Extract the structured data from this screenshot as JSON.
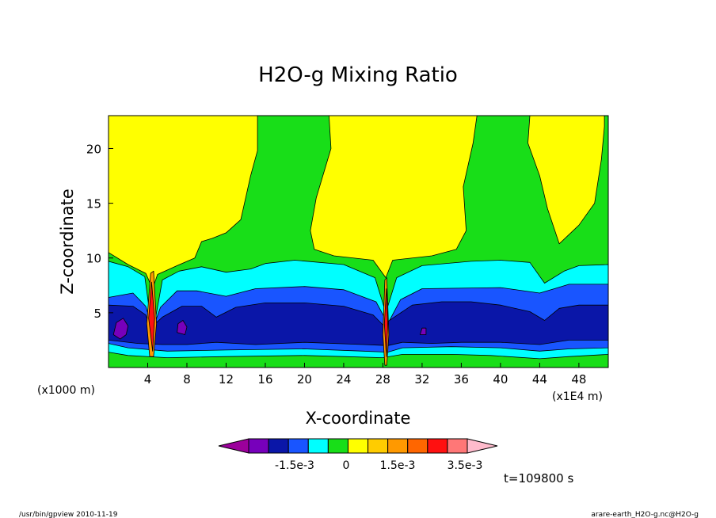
{
  "chart_data": {
    "type": "heatmap",
    "title": "H2O-g Mixing Ratio",
    "xlabel": "X-coordinate",
    "ylabel": "Z-coordinate",
    "x_unit": "(x1E4 m)",
    "y_unit": "(x1000 m)",
    "xlim": [
      0,
      51
    ],
    "ylim": [
      0,
      23
    ],
    "x_ticks": [
      4,
      8,
      12,
      16,
      20,
      24,
      28,
      32,
      36,
      40,
      44,
      48
    ],
    "y_ticks": [
      5,
      10,
      15,
      20
    ],
    "colorbar": {
      "colors": [
        "#9b009b",
        "#7700bb",
        "#0a16a8",
        "#1955ff",
        "#00ffff",
        "#18de18",
        "#ffff00",
        "#ffcc00",
        "#ff9900",
        "#ff6600",
        "#ff1010",
        "#ff7777",
        "#ffbbcc"
      ],
      "labels": [
        "-1.5e-3",
        "0",
        "1.5e-3",
        "3.5e-3"
      ]
    },
    "time_label": "t=109800 s",
    "footer_left": "/usr/bin/gpview   2010-11-19",
    "footer_right": "arare-earth_H2O-g.nc@H2O-g",
    "levels": [
      {
        "name": "green",
        "color": "#18de18",
        "polygons": [
          [
            [
              0,
              0
            ],
            [
              51,
              0
            ],
            [
              51,
              23
            ],
            [
              0,
              23
            ]
          ]
        ]
      },
      {
        "name": "yellow",
        "color": "#ffff00",
        "polygons": [
          [
            [
              0,
              23
            ],
            [
              0,
              10.5
            ],
            [
              2,
              9.4
            ],
            [
              3.8,
              8.6
            ],
            [
              4.5,
              7.2
            ],
            [
              5,
              8.5
            ],
            [
              7,
              9.3
            ],
            [
              8.8,
              10.0
            ],
            [
              9.5,
              11.5
            ],
            [
              10.6,
              11.8
            ],
            [
              12,
              12.3
            ],
            [
              13.5,
              13.5
            ],
            [
              14,
              15.5
            ],
            [
              14.5,
              17.5
            ],
            [
              15.2,
              19.8
            ],
            [
              15.2,
              23
            ]
          ],
          [
            [
              22.5,
              23
            ],
            [
              22.7,
              20
            ],
            [
              21.2,
              15.5
            ],
            [
              20.6,
              12.5
            ],
            [
              21,
              10.8
            ],
            [
              23,
              10.2
            ],
            [
              27,
              9.8
            ],
            [
              28.3,
              8.2
            ],
            [
              29,
              9.8
            ],
            [
              33,
              10.2
            ],
            [
              35.5,
              10.8
            ],
            [
              36.5,
              12.5
            ],
            [
              36.2,
              16.5
            ],
            [
              37.2,
              20.5
            ],
            [
              37.6,
              23
            ]
          ],
          [
            [
              43,
              23
            ],
            [
              42.8,
              20.5
            ],
            [
              44,
              17.5
            ],
            [
              44.8,
              14.5
            ],
            [
              46,
              11.3
            ],
            [
              48,
              13
            ],
            [
              49.6,
              15
            ],
            [
              50.3,
              19
            ],
            [
              50.6,
              22
            ],
            [
              50.6,
              23
            ]
          ]
        ]
      },
      {
        "name": "cyan",
        "color": "#00ffff",
        "polygons": [
          [
            [
              0,
              1.4
            ],
            [
              0,
              9.7
            ],
            [
              2,
              9.2
            ],
            [
              3.7,
              8.3
            ],
            [
              4.5,
              3.0
            ],
            [
              5.5,
              8.0
            ],
            [
              7.2,
              8.8
            ],
            [
              9.5,
              9.2
            ],
            [
              12,
              8.7
            ],
            [
              14.5,
              9.0
            ],
            [
              16,
              9.5
            ],
            [
              19,
              9.8
            ],
            [
              24,
              9.4
            ],
            [
              27.2,
              8.2
            ],
            [
              28.3,
              5
            ],
            [
              29.4,
              8.2
            ],
            [
              32,
              9.3
            ],
            [
              37,
              9.7
            ],
            [
              40,
              9.8
            ],
            [
              43,
              9.6
            ],
            [
              44.5,
              7.7
            ],
            [
              46.5,
              8.8
            ],
            [
              48,
              9.3
            ],
            [
              51,
              9.4
            ],
            [
              51,
              1.2
            ],
            [
              47,
              1.0
            ],
            [
              44,
              0.8
            ],
            [
              39,
              1.1
            ],
            [
              35,
              1.2
            ],
            [
              30,
              1.2
            ],
            [
              28,
              0.9
            ],
            [
              24,
              1.0
            ],
            [
              20,
              1.1
            ],
            [
              12,
              1.0
            ],
            [
              6,
              0.9
            ],
            [
              2,
              1.1
            ]
          ]
        ]
      },
      {
        "name": "blue",
        "color": "#1955ff",
        "polygons": [
          [
            [
              0,
              2.2
            ],
            [
              0,
              6.4
            ],
            [
              2.5,
              6.8
            ],
            [
              3.8,
              5.6
            ],
            [
              4.5,
              3.5
            ],
            [
              5.3,
              5.5
            ],
            [
              7,
              7.0
            ],
            [
              9,
              7.0
            ],
            [
              12,
              6.5
            ],
            [
              15,
              7.2
            ],
            [
              20,
              7.4
            ],
            [
              24,
              7.1
            ],
            [
              27.3,
              6.0
            ],
            [
              28.5,
              4.0
            ],
            [
              29.8,
              6.2
            ],
            [
              32,
              7.2
            ],
            [
              40,
              7.3
            ],
            [
              44,
              6.8
            ],
            [
              45.5,
              7.2
            ],
            [
              47,
              7.6
            ],
            [
              51,
              7.6
            ],
            [
              51,
              1.8
            ],
            [
              47,
              1.7
            ],
            [
              44,
              1.5
            ],
            [
              40,
              1.8
            ],
            [
              35,
              1.9
            ],
            [
              30,
              1.8
            ],
            [
              28.5,
              1.4
            ],
            [
              26,
              1.5
            ],
            [
              20,
              1.7
            ],
            [
              12,
              1.6
            ],
            [
              6,
              1.5
            ],
            [
              2,
              1.8
            ]
          ]
        ]
      },
      {
        "name": "darkblue",
        "color": "#0a16a8",
        "polygons": [
          [
            [
              0,
              2.5
            ],
            [
              0,
              5.7
            ],
            [
              2.5,
              5.6
            ],
            [
              3.8,
              4.8
            ],
            [
              4.3,
              3.6
            ],
            [
              5.5,
              4.6
            ],
            [
              7.5,
              5.6
            ],
            [
              9.5,
              5.6
            ],
            [
              11,
              4.6
            ],
            [
              13,
              5.5
            ],
            [
              16,
              5.9
            ],
            [
              20,
              5.9
            ],
            [
              24,
              5.6
            ],
            [
              27,
              4.8
            ],
            [
              28,
              3.9
            ],
            [
              29.5,
              4.8
            ],
            [
              31,
              5.7
            ],
            [
              34,
              6.0
            ],
            [
              37,
              6.0
            ],
            [
              40,
              5.7
            ],
            [
              43,
              5.1
            ],
            [
              44.5,
              4.3
            ],
            [
              46,
              5.4
            ],
            [
              48,
              5.7
            ],
            [
              51,
              5.7
            ],
            [
              51,
              2.5
            ],
            [
              47,
              2.5
            ],
            [
              44,
              2.1
            ],
            [
              40,
              2.3
            ],
            [
              36,
              2.3
            ],
            [
              33,
              2.2
            ],
            [
              30,
              2.3
            ],
            [
              28.5,
              2.0
            ],
            [
              26,
              2.1
            ],
            [
              20,
              2.3
            ],
            [
              15,
              2.1
            ],
            [
              11,
              2.3
            ],
            [
              8,
              2.1
            ],
            [
              5.5,
              2.1
            ],
            [
              3,
              2.2
            ]
          ]
        ]
      },
      {
        "name": "purple",
        "color": "#7700bb",
        "polygons": [
          [
            [
              0.5,
              3.0
            ],
            [
              0.8,
              4.1
            ],
            [
              1.5,
              4.5
            ],
            [
              2.0,
              3.8
            ],
            [
              1.8,
              3.0
            ],
            [
              1.2,
              2.6
            ]
          ],
          [
            [
              7.0,
              3.2
            ],
            [
              7.1,
              4.0
            ],
            [
              7.6,
              4.3
            ],
            [
              8.0,
              3.7
            ],
            [
              7.8,
              3.0
            ]
          ],
          [
            [
              31.8,
              3.0
            ],
            [
              32.0,
              3.6
            ],
            [
              32.4,
              3.6
            ],
            [
              32.4,
              3.0
            ]
          ]
        ]
      },
      {
        "name": "orange",
        "color": "#ff9900",
        "polygons": [
          [
            [
              3.9,
              4.0
            ],
            [
              4.3,
              8.6
            ],
            [
              4.6,
              8.8
            ],
            [
              4.9,
              4.0
            ],
            [
              4.6,
              1.0
            ],
            [
              4.2,
              1.0
            ]
          ],
          [
            [
              28.0,
              3.0
            ],
            [
              28.2,
              8.0
            ],
            [
              28.4,
              8.2
            ],
            [
              28.6,
              3.0
            ],
            [
              28.4,
              0.2
            ],
            [
              28.2,
              0.2
            ]
          ]
        ]
      },
      {
        "name": "red",
        "color": "#ff1010",
        "polygons": [
          [
            [
              4.1,
              4.5
            ],
            [
              4.4,
              7.8
            ],
            [
              4.7,
              4.5
            ],
            [
              4.5,
              1.5
            ]
          ],
          [
            [
              28.15,
              4.0
            ],
            [
              28.35,
              7.2
            ],
            [
              28.5,
              4.0
            ],
            [
              28.35,
              1.0
            ]
          ]
        ]
      }
    ]
  }
}
